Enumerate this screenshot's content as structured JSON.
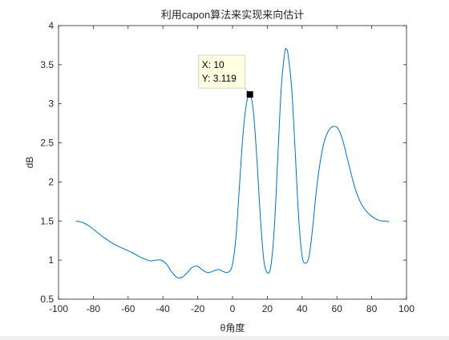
{
  "chart_data": {
    "type": "line",
    "title": "利用capon算法来实现来向估计",
    "xlabel": "θ角度",
    "ylabel": "dB",
    "xlim": [
      -100,
      100
    ],
    "ylim": [
      0.5,
      4
    ],
    "xticks": [
      -100,
      -80,
      -60,
      -40,
      -20,
      0,
      20,
      40,
      60,
      80,
      100
    ],
    "yticks": [
      0.5,
      1,
      1.5,
      2,
      2.5,
      3,
      3.5,
      4
    ],
    "grid": false,
    "series": [
      {
        "color": "#0072BD",
        "points": [
          [
            -90,
            1.5
          ],
          [
            -86,
            1.48
          ],
          [
            -82,
            1.43
          ],
          [
            -78,
            1.36
          ],
          [
            -74,
            1.29
          ],
          [
            -70,
            1.23
          ],
          [
            -66,
            1.18
          ],
          [
            -62,
            1.14
          ],
          [
            -58,
            1.1
          ],
          [
            -54,
            1.05
          ],
          [
            -50,
            1.01
          ],
          [
            -47,
            0.99
          ],
          [
            -44,
            1.0
          ],
          [
            -41,
            1.0
          ],
          [
            -38,
            0.95
          ],
          [
            -35,
            0.85
          ],
          [
            -32,
            0.78
          ],
          [
            -29,
            0.78
          ],
          [
            -26,
            0.84
          ],
          [
            -23,
            0.91
          ],
          [
            -20,
            0.92
          ],
          [
            -17,
            0.87
          ],
          [
            -14,
            0.84
          ],
          [
            -11,
            0.86
          ],
          [
            -8,
            0.88
          ],
          [
            -5,
            0.85
          ],
          [
            -2,
            0.85
          ],
          [
            0,
            0.95
          ],
          [
            2,
            1.3
          ],
          [
            4,
            1.95
          ],
          [
            6,
            2.6
          ],
          [
            8,
            3.0
          ],
          [
            10,
            3.119
          ],
          [
            12,
            2.9
          ],
          [
            14,
            2.3
          ],
          [
            16,
            1.55
          ],
          [
            18,
            1.0
          ],
          [
            20,
            0.84
          ],
          [
            22,
            0.92
          ],
          [
            24,
            1.4
          ],
          [
            26,
            2.3
          ],
          [
            28,
            3.2
          ],
          [
            30,
            3.65
          ],
          [
            31,
            3.7
          ],
          [
            32,
            3.62
          ],
          [
            34,
            3.2
          ],
          [
            36,
            2.4
          ],
          [
            38,
            1.55
          ],
          [
            40,
            1.05
          ],
          [
            42,
            0.96
          ],
          [
            44,
            1.05
          ],
          [
            46,
            1.4
          ],
          [
            48,
            1.85
          ],
          [
            50,
            2.2
          ],
          [
            52,
            2.45
          ],
          [
            54,
            2.6
          ],
          [
            56,
            2.68
          ],
          [
            58,
            2.71
          ],
          [
            60,
            2.7
          ],
          [
            62,
            2.62
          ],
          [
            64,
            2.48
          ],
          [
            66,
            2.3
          ],
          [
            68,
            2.12
          ],
          [
            70,
            1.95
          ],
          [
            72,
            1.82
          ],
          [
            74,
            1.72
          ],
          [
            76,
            1.65
          ],
          [
            78,
            1.6
          ],
          [
            80,
            1.56
          ],
          [
            82,
            1.53
          ],
          [
            84,
            1.51
          ],
          [
            86,
            1.5
          ],
          [
            88,
            1.5
          ],
          [
            90,
            1.49
          ]
        ]
      }
    ],
    "datatip": {
      "x": 10,
      "y": 3.119,
      "x_text": "X: 10",
      "y_text": "Y: 3.119"
    }
  }
}
